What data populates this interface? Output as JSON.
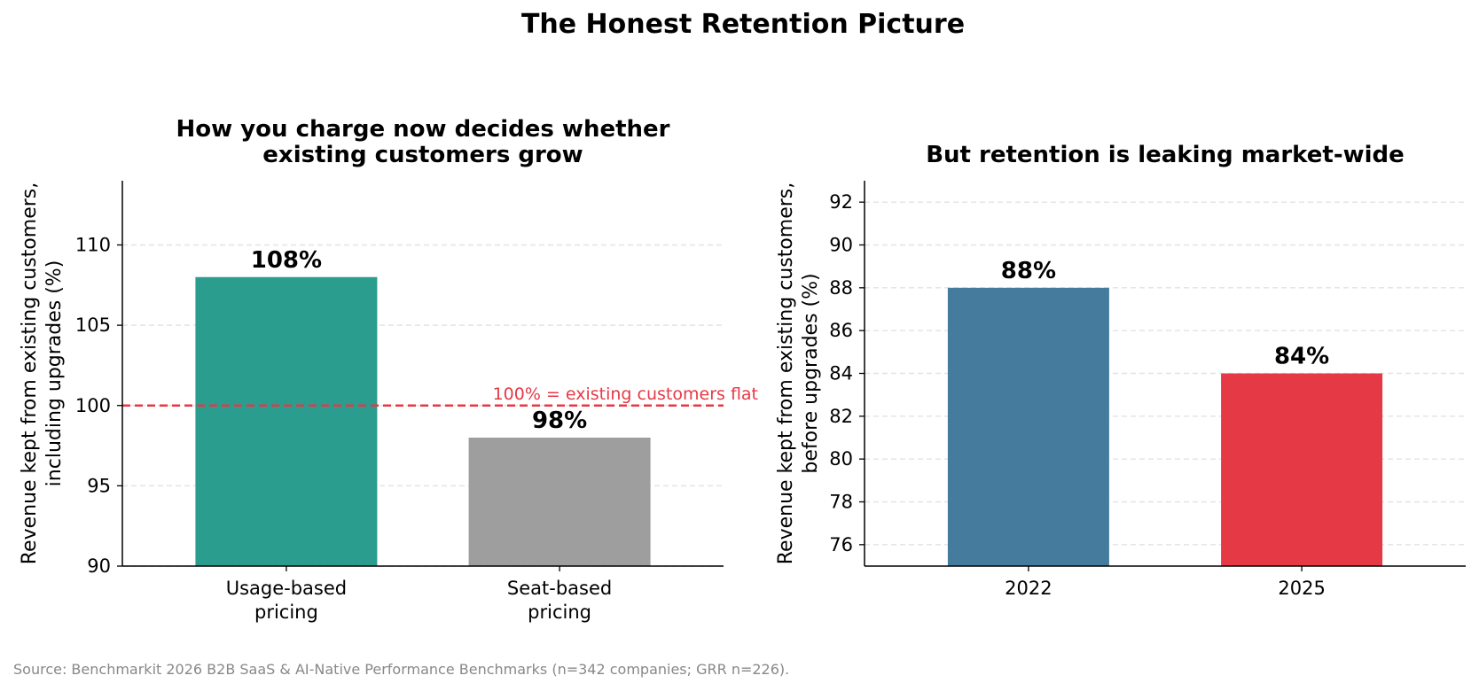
{
  "figure": {
    "title": "The Honest Retention Picture",
    "source": "Source: Benchmarkit 2026 B2B SaaS & AI-Native Performance Benchmarks (n=342 companies; GRR n=226)."
  },
  "chart_data": [
    {
      "type": "bar",
      "title": [
        "How you charge now decides whether",
        "existing customers grow"
      ],
      "ylabel": [
        "Revenue kept from existing customers,",
        "including upgrades (%)"
      ],
      "categories": [
        [
          "Usage-based",
          "pricing"
        ],
        [
          "Seat-based",
          "pricing"
        ]
      ],
      "values": [
        108,
        98
      ],
      "data_labels": [
        "108%",
        "98%"
      ],
      "colors": [
        "#2a9d8f",
        "#9e9e9e"
      ],
      "ylim": [
        90,
        114
      ],
      "yticks": [
        90,
        95,
        100,
        105,
        110
      ],
      "grid": true,
      "reference_line": {
        "value": 100,
        "label": "100% = existing customers flat",
        "color": "#e63946"
      }
    },
    {
      "type": "bar",
      "title": [
        "But retention is leaking market-wide"
      ],
      "ylabel": [
        "Revenue kept from existing customers,",
        "before upgrades (%)"
      ],
      "categories": [
        [
          "2022"
        ],
        [
          "2025"
        ]
      ],
      "values": [
        88,
        84
      ],
      "data_labels": [
        "88%",
        "84%"
      ],
      "colors": [
        "#457b9d",
        "#e63946"
      ],
      "ylim": [
        75,
        93
      ],
      "yticks": [
        76,
        78,
        80,
        82,
        84,
        86,
        88,
        90,
        92
      ],
      "grid": true
    }
  ]
}
